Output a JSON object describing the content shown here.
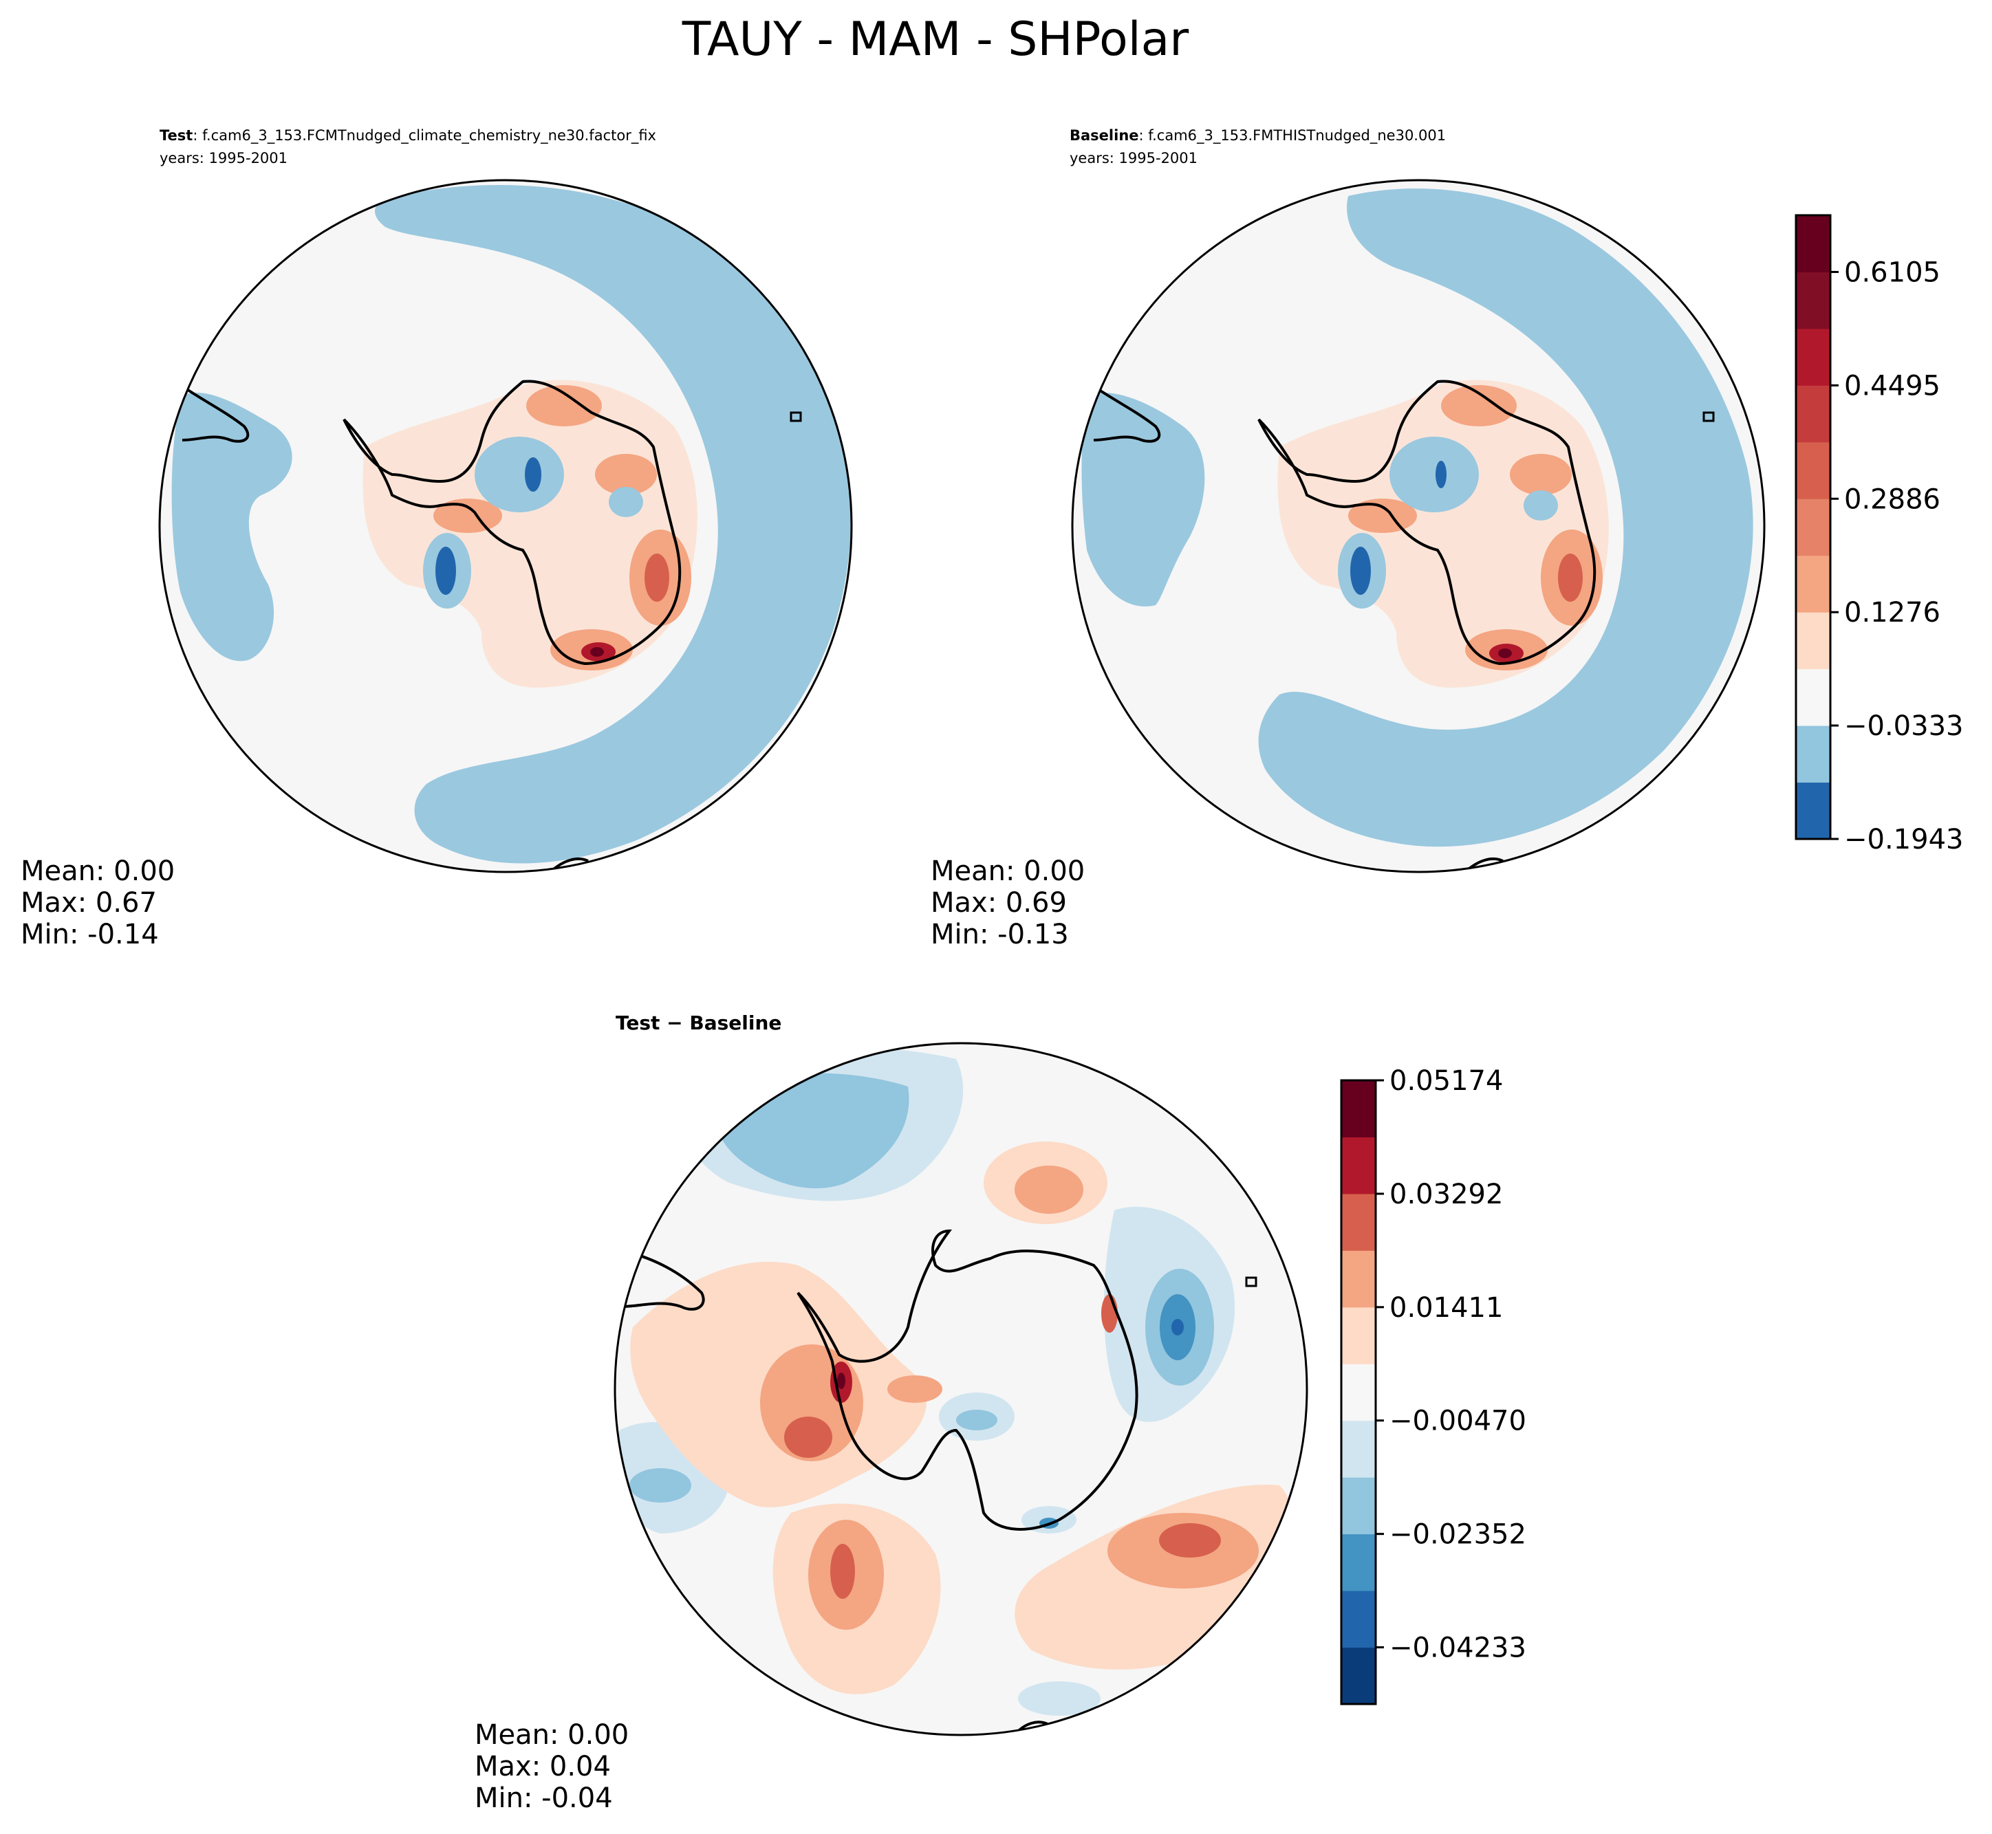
{
  "figure": {
    "title": "TAUY - MAM - SHPolar"
  },
  "colors": {
    "land_outline": "#000000",
    "map_border": "#000000",
    "background": "#ffffff"
  },
  "chart_data": [
    {
      "type": "heatmap",
      "panel": "test",
      "label_bold": "Test",
      "label_rest": ": f.cam6_3_153.FCMTnudged_climate_chemistry_ne30.factor_fix",
      "years": "years: 1995-2001",
      "projection": "south polar stereographic",
      "colormap": "RdBu_r",
      "levels": [
        -0.1943,
        -0.1138,
        -0.0333,
        0.0471,
        0.1276,
        0.2081,
        0.2886,
        0.369,
        0.4495,
        0.53,
        0.6105,
        0.691
      ],
      "stats": {
        "mean": "Mean:  0.00",
        "max": "Max:  0.67",
        "min": "Min: -0.14"
      }
    },
    {
      "type": "heatmap",
      "panel": "baseline",
      "label_bold": "Baseline",
      "label_rest": ": f.cam6_3_153.FMTHISTnudged_ne30.001",
      "years": "years: 1995-2001",
      "projection": "south polar stereographic",
      "colormap": "RdBu_r",
      "levels": [
        -0.1943,
        -0.1138,
        -0.0333,
        0.0471,
        0.1276,
        0.2081,
        0.2886,
        0.369,
        0.4495,
        0.53,
        0.6105,
        0.691
      ],
      "stats": {
        "mean": "Mean:  0.00",
        "max": "Max:  0.69",
        "min": "Min: -0.13"
      },
      "colorbar": {
        "ticks": [
          "0.6105",
          "0.4495",
          "0.2886",
          "0.1276",
          "−0.0333",
          "−0.1943"
        ],
        "tick_values": [
          0.6105,
          0.4495,
          0.2886,
          0.1276,
          -0.0333,
          -0.1943
        ],
        "range": [
          -0.1943,
          0.691
        ],
        "colors": [
          "#2166ac",
          "#92c5de",
          "#f7f7f7",
          "#fddbc7",
          "#f4a582",
          "#e58267",
          "#d6604d",
          "#c43c3c",
          "#b2182b",
          "#800f26",
          "#67001f"
        ]
      }
    },
    {
      "type": "heatmap",
      "panel": "difference",
      "label": "Test − Baseline",
      "projection": "south polar stereographic",
      "colormap": "RdBu_r",
      "levels": [
        -0.05174,
        -0.04233,
        -0.03292,
        -0.02352,
        -0.01411,
        -0.0047,
        0.0047,
        0.01411,
        0.02352,
        0.03292,
        0.04233,
        0.05174
      ],
      "stats": {
        "mean": "Mean:  0.00",
        "max": "Max:  0.04",
        "min": "Min: -0.04"
      },
      "colorbar": {
        "ticks": [
          "0.05174",
          "0.03292",
          "0.01411",
          "−0.00470",
          "−0.02352",
          "−0.04233"
        ],
        "tick_values": [
          0.05174,
          0.03292,
          0.01411,
          -0.0047,
          -0.02352,
          -0.04233
        ],
        "range": [
          -0.05174,
          0.05174
        ],
        "colors": [
          "#0b3c7a",
          "#2166ac",
          "#4393c3",
          "#92c5de",
          "#d1e5f0",
          "#f7f7f7",
          "#fddbc7",
          "#f4a582",
          "#d6604d",
          "#b2182b",
          "#67001f"
        ]
      }
    }
  ]
}
